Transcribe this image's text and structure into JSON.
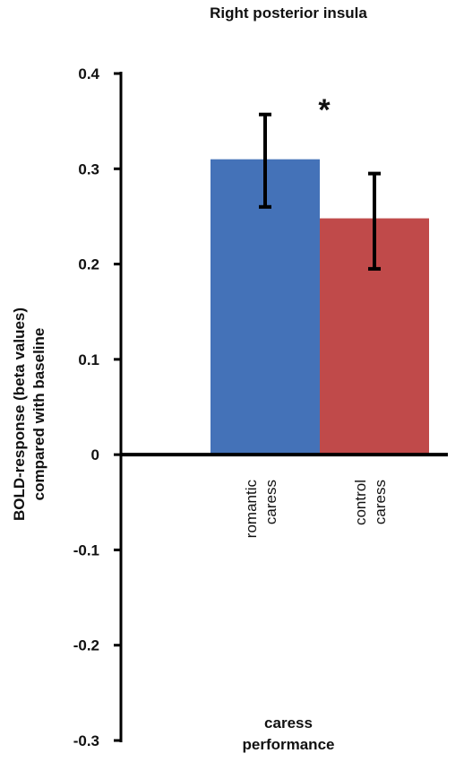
{
  "chart_data": {
    "type": "bar",
    "title": "Right posterior insula",
    "ylabel_lines": [
      "BOLD-response (beta values)",
      "compared with baseline"
    ],
    "xlabel_lines": [
      "caress",
      "performance"
    ],
    "categories": [
      {
        "lines": [
          "romantic",
          "caress"
        ]
      },
      {
        "lines": [
          "control",
          "caress"
        ]
      }
    ],
    "values": [
      0.31,
      0.248
    ],
    "error_low": [
      0.26,
      0.195
    ],
    "error_high": [
      0.357,
      0.295
    ],
    "colors": [
      "#4472b8",
      "#c04a4a"
    ],
    "ylim": [
      -0.3,
      0.4
    ],
    "yticks": [
      "0.4",
      "0.3",
      "0.2",
      "0.1",
      "0",
      "-0.1",
      "-0.2",
      "-0.3"
    ],
    "significance_marker": "*",
    "grid": false,
    "legend": "none"
  }
}
